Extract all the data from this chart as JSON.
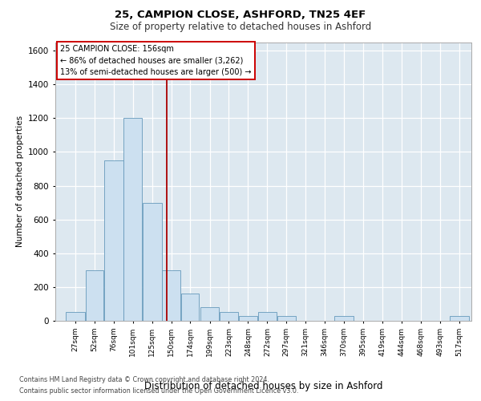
{
  "title1": "25, CAMPION CLOSE, ASHFORD, TN25 4EF",
  "title2": "Size of property relative to detached houses in Ashford",
  "xlabel": "Distribution of detached houses by size in Ashford",
  "ylabel": "Number of detached properties",
  "footer1": "Contains HM Land Registry data © Crown copyright and database right 2024.",
  "footer2": "Contains public sector information licensed under the Open Government Licence v3.0.",
  "annotation_line1": "25 CAMPION CLOSE: 156sqm",
  "annotation_line2": "← 86% of detached houses are smaller (3,262)",
  "annotation_line3": "13% of semi-detached houses are larger (500) →",
  "bar_left_edges": [
    27,
    52,
    76,
    101,
    125,
    150,
    174,
    199,
    223,
    248,
    272,
    297,
    321,
    346,
    370,
    395,
    419,
    444,
    468,
    493,
    517
  ],
  "bar_widths": [
    25,
    24,
    25,
    24,
    25,
    24,
    24,
    24,
    25,
    24,
    25,
    24,
    25,
    24,
    25,
    24,
    25,
    24,
    25,
    24,
    25
  ],
  "bar_heights": [
    50,
    300,
    950,
    1200,
    700,
    300,
    160,
    80,
    50,
    30,
    50,
    30,
    0,
    0,
    30,
    0,
    0,
    0,
    0,
    0,
    30
  ],
  "bar_color": "#cce0f0",
  "bar_edgecolor": "#6699bb",
  "vline_color": "#aa0000",
  "vline_x": 156,
  "ylim": [
    0,
    1650
  ],
  "yticks": [
    0,
    200,
    400,
    600,
    800,
    1000,
    1200,
    1400,
    1600
  ],
  "xlim_left": 14,
  "xlim_right": 545,
  "plot_bg_color": "#dde8f0",
  "grid_color": "#ffffff",
  "tick_labels": [
    "27sqm",
    "52sqm",
    "76sqm",
    "101sqm",
    "125sqm",
    "150sqm",
    "174sqm",
    "199sqm",
    "223sqm",
    "248sqm",
    "272sqm",
    "297sqm",
    "321sqm",
    "346sqm",
    "370sqm",
    "395sqm",
    "419sqm",
    "444sqm",
    "468sqm",
    "493sqm",
    "517sqm"
  ]
}
